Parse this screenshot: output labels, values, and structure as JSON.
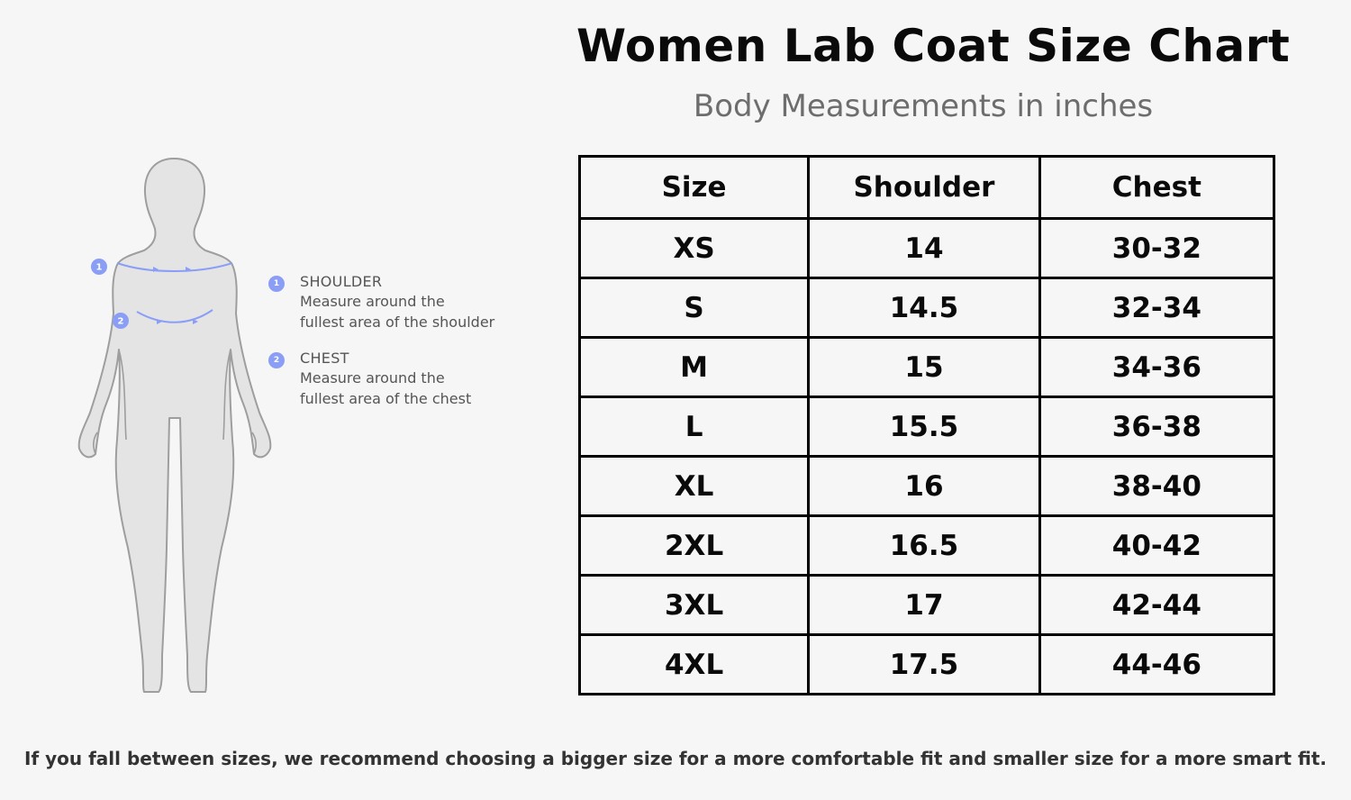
{
  "header": {
    "title": "Women Lab Coat Size Chart",
    "subtitle": "Body Measurements in inches"
  },
  "figure": {
    "markers": [
      "1",
      "2"
    ],
    "accent_color": "#8b9ef6"
  },
  "legend": {
    "items": [
      {
        "number": "1",
        "heading": "SHOULDER",
        "line1": "Measure around the",
        "line2": "fullest area of the shoulder"
      },
      {
        "number": "2",
        "heading": "CHEST",
        "line1": "Measure around the",
        "line2": "fullest area of the chest"
      }
    ]
  },
  "table": {
    "headers": [
      "Size",
      "Shoulder",
      "Chest"
    ],
    "rows": [
      [
        "XS",
        "14",
        "30-32"
      ],
      [
        "S",
        "14.5",
        "32-34"
      ],
      [
        "M",
        "15",
        "34-36"
      ],
      [
        "L",
        "15.5",
        "36-38"
      ],
      [
        "XL",
        "16",
        "38-40"
      ],
      [
        "2XL",
        "16.5",
        "40-42"
      ],
      [
        "3XL",
        "17",
        "42-44"
      ],
      [
        "4XL",
        "17.5",
        "44-46"
      ]
    ]
  },
  "footer": {
    "note": "If you fall between sizes, we recommend choosing a bigger size for a more comfortable fit and smaller size for a more smart fit."
  }
}
